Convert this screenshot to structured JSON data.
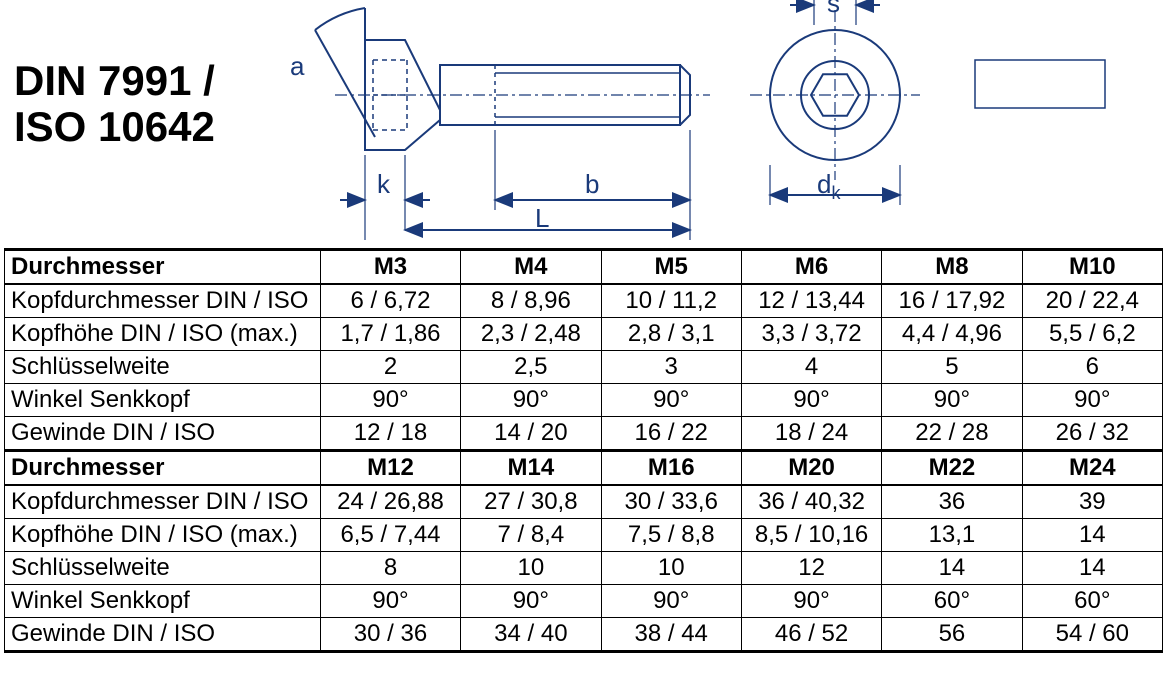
{
  "title_line1": "DIN 7991 /",
  "title_line2": "ISO 10642",
  "diagram": {
    "labels": {
      "a": "a",
      "k": "k",
      "b": "b",
      "L": "L",
      "s": "s",
      "dk": "d",
      "dk_sub": "k"
    },
    "stroke": "#1a3a7a",
    "text_color": "#1a3a7a",
    "stroke_width": 2
  },
  "tables": [
    {
      "header": [
        "Durchmesser",
        "M3",
        "M4",
        "M5",
        "M6",
        "M8",
        "M10"
      ],
      "rows": [
        [
          "Kopfdurchmesser DIN / ISO",
          "6 / 6,72",
          "8 / 8,96",
          "10 / 11,2",
          "12 / 13,44",
          "16 / 17,92",
          "20 / 22,4"
        ],
        [
          "Kopfhöhe DIN / ISO   (max.)",
          "1,7 / 1,86",
          "2,3 / 2,48",
          "2,8 / 3,1",
          "3,3 / 3,72",
          "4,4 / 4,96",
          "5,5 / 6,2"
        ],
        [
          "Schlüsselweite",
          "2",
          "2,5",
          "3",
          "4",
          "5",
          "6"
        ],
        [
          "Winkel Senkkopf",
          "90°",
          "90°",
          "90°",
          "90°",
          "90°",
          "90°"
        ],
        [
          "Gewinde DIN / ISO",
          "12 / 18",
          "14 / 20",
          "16 / 22",
          "18 / 24",
          "22 / 28",
          "26 / 32"
        ]
      ]
    },
    {
      "header": [
        "Durchmesser",
        "M12",
        "M14",
        "M16",
        "M20",
        "M22",
        "M24"
      ],
      "rows": [
        [
          "Kopfdurchmesser DIN / ISO",
          "24 / 26,88",
          "27 / 30,8",
          "30 / 33,6",
          "36 / 40,32",
          "36",
          "39"
        ],
        [
          "Kopfhöhe DIN / ISO   (max.)",
          "6,5 / 7,44",
          "7 / 8,4",
          "7,5 / 8,8",
          "8,5 / 10,16",
          "13,1",
          "14"
        ],
        [
          "Schlüsselweite",
          "8",
          "10",
          "10",
          "12",
          "14",
          "14"
        ],
        [
          "Winkel Senkkopf",
          "90°",
          "90°",
          "90°",
          "90°",
          "60°",
          "60°"
        ],
        [
          "Gewinde DIN / ISO",
          "30 / 36",
          "34 / 40",
          "38 / 44",
          "46 / 52",
          "56",
          "54 / 60"
        ]
      ]
    }
  ]
}
